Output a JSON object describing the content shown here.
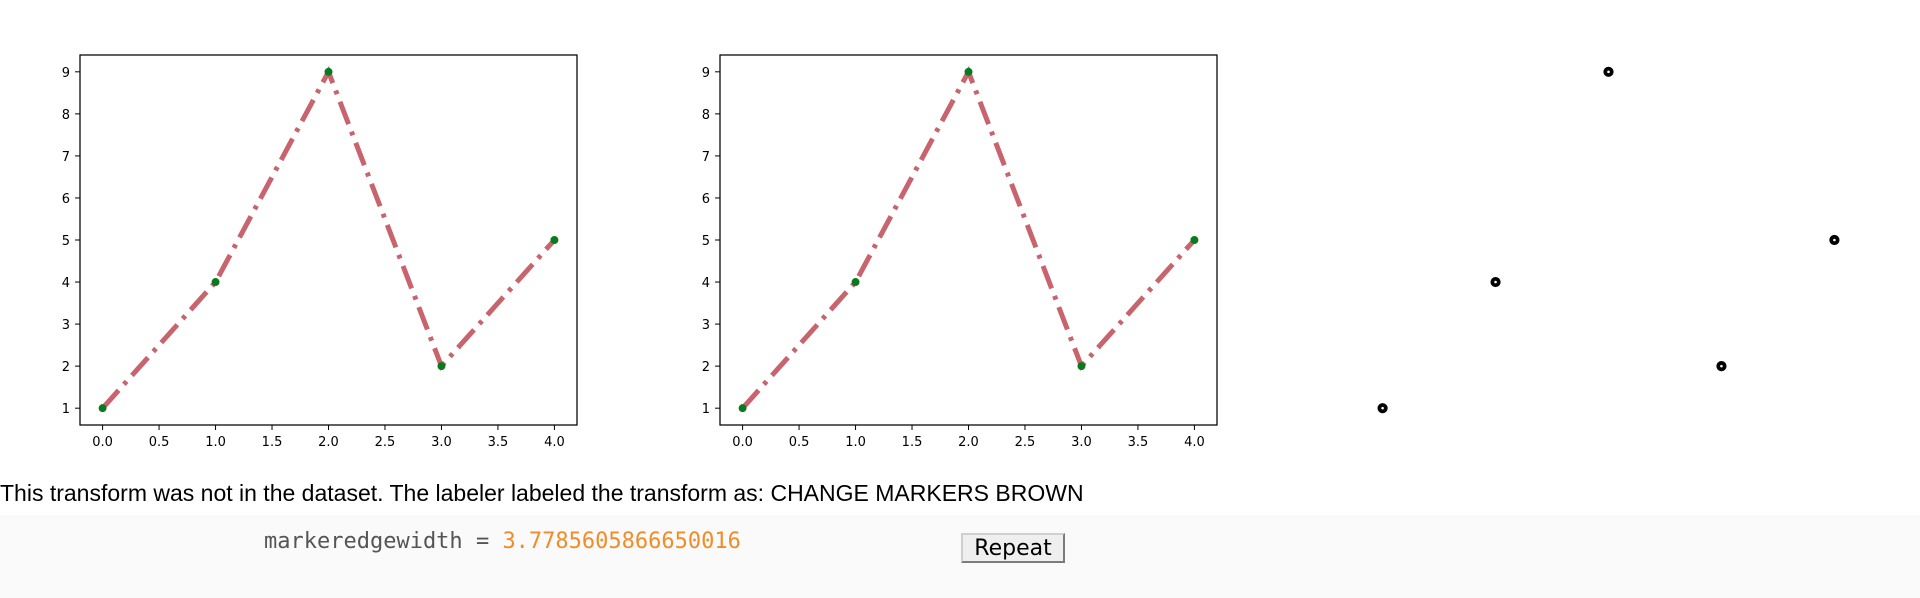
{
  "chart_data": [
    {
      "type": "line",
      "x": [
        0,
        1,
        2,
        3,
        4
      ],
      "series": [
        {
          "values": [
            1,
            4,
            9,
            2,
            5
          ]
        }
      ],
      "xticks": [
        "0.0",
        "0.5",
        "1.0",
        "1.5",
        "2.0",
        "2.5",
        "3.0",
        "3.5",
        "4.0"
      ],
      "yticks": [
        "1",
        "2",
        "3",
        "4",
        "5",
        "6",
        "7",
        "8",
        "9"
      ],
      "xlim": [
        -0.2,
        4.2
      ],
      "ylim": [
        0.6,
        9.4
      ],
      "line_color": "#c8646e",
      "line_style": "dash-dot",
      "marker_color": "#0a7a1e",
      "grid": false,
      "axes_visible": true
    },
    {
      "type": "line",
      "x": [
        0,
        1,
        2,
        3,
        4
      ],
      "series": [
        {
          "values": [
            1,
            4,
            9,
            2,
            5
          ]
        }
      ],
      "xticks": [
        "0.0",
        "0.5",
        "1.0",
        "1.5",
        "2.0",
        "2.5",
        "3.0",
        "3.5",
        "4.0"
      ],
      "yticks": [
        "1",
        "2",
        "3",
        "4",
        "5",
        "6",
        "7",
        "8",
        "9"
      ],
      "xlim": [
        -0.2,
        4.2
      ],
      "ylim": [
        0.6,
        9.4
      ],
      "line_color": "#c8646e",
      "line_style": "dash-dot",
      "marker_color": "#0a7a1e",
      "grid": false,
      "axes_visible": true
    },
    {
      "type": "scatter",
      "x": [
        0,
        1,
        2,
        3,
        4
      ],
      "series": [
        {
          "values": [
            1,
            4,
            9,
            2,
            5
          ]
        }
      ],
      "xlim": [
        -0.2,
        4.2
      ],
      "ylim": [
        0.6,
        9.4
      ],
      "marker_color": "#000000",
      "grid": false,
      "axes_visible": false
    }
  ],
  "caption": "This transform was not in the dataset. The labeler labeled the transform as: CHANGE MARKERS BROWN",
  "param": {
    "name": "markeredgewidth",
    "equals": "=",
    "value": "3.7785605866650016"
  },
  "repeat_label": "Repeat"
}
